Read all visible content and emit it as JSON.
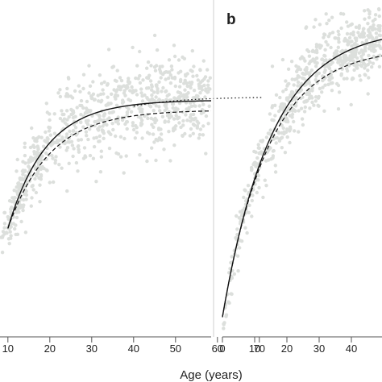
{
  "chart_data": [
    {
      "type": "scatter",
      "panel": "a",
      "xlim": [
        -10,
        73
      ],
      "ylim": [
        0,
        1
      ],
      "x_ticks": [
        10,
        20,
        30,
        40,
        50,
        60,
        70
      ],
      "x_tick_labels": [
        "10",
        "20",
        "30",
        "40",
        "50",
        "60",
        "70"
      ],
      "grid": false,
      "point_color": "#dcdfdc",
      "curves": [
        {
          "style": "solid",
          "x_range": [
            10,
            62
          ],
          "asymptote": 0.72,
          "start": 0.33,
          "rate": 0.11
        },
        {
          "style": "dotted",
          "x_range": [
            40,
            71
          ],
          "asymptote": 0.73,
          "start": 0.33,
          "rate": 0.088
        },
        {
          "style": "dashed",
          "x_range": [
            10,
            62
          ],
          "asymptote": 0.69,
          "start": 0.33,
          "rate": 0.1
        }
      ]
    },
    {
      "type": "scatter",
      "panel": "b",
      "label": "b",
      "xlim": [
        0,
        50
      ],
      "ylim": [
        0,
        1
      ],
      "x_ticks": [
        0,
        10,
        20,
        30,
        40
      ],
      "x_tick_labels": [
        "0",
        "10",
        "20",
        "30",
        "40"
      ],
      "xlabel": "Age (years)",
      "grid": false,
      "point_color": "#dcdfdc",
      "curves": [
        {
          "style": "solid",
          "x_range": [
            0,
            50
          ],
          "asymptote": 0.94,
          "start": 0.06,
          "rate": 0.065
        },
        {
          "style": "dashed",
          "x_range": [
            0,
            50
          ],
          "asymptote": 0.88,
          "start": 0.06,
          "rate": 0.07
        }
      ]
    }
  ]
}
